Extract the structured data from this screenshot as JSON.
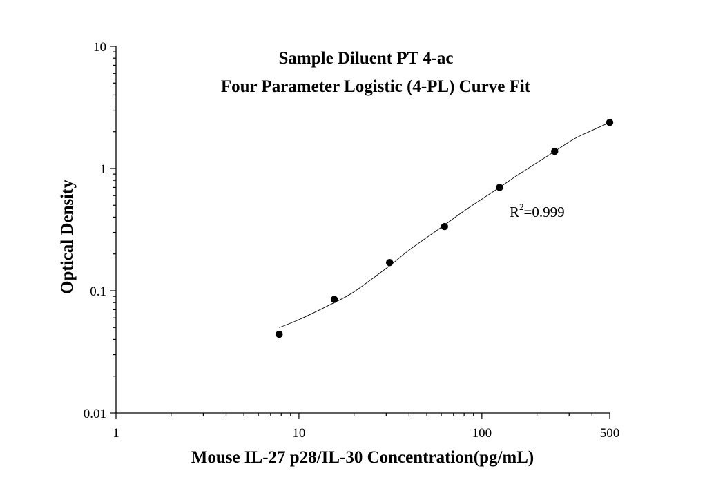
{
  "chart_data": {
    "type": "scatter",
    "title": "Sample Diluent PT 4-ac",
    "subtitle": "Four Parameter Logistic (4-PL) Curve Fit",
    "xlabel": "Mouse IL-27 p28/IL-30 Concentration(pg/mL)",
    "ylabel": "Optical Density",
    "x_scale": "log",
    "y_scale": "log",
    "xlim": [
      1,
      500
    ],
    "ylim": [
      0.01,
      10
    ],
    "x_ticks": [
      {
        "value": 1,
        "label": "1"
      },
      {
        "value": 10,
        "label": "10"
      },
      {
        "value": 100,
        "label": "100"
      },
      {
        "value": 500,
        "label": "500"
      }
    ],
    "y_ticks": [
      {
        "value": 0.01,
        "label": "0.01"
      },
      {
        "value": 0.1,
        "label": "0.1"
      },
      {
        "value": 1,
        "label": "1"
      },
      {
        "value": 10,
        "label": "10"
      }
    ],
    "series": [
      {
        "x": [
          7.8,
          15.6,
          31.3,
          62.5,
          125,
          250,
          500
        ],
        "y": [
          0.044,
          0.085,
          0.17,
          0.335,
          0.7,
          1.38,
          2.38
        ]
      }
    ],
    "fit_curve": {
      "x": [
        7.8,
        10,
        15.6,
        20,
        31.3,
        40,
        62.5,
        80,
        125,
        160,
        250,
        320,
        400,
        500
      ],
      "y": [
        0.05,
        0.058,
        0.08,
        0.098,
        0.16,
        0.215,
        0.345,
        0.45,
        0.7,
        0.9,
        1.38,
        1.75,
        2.05,
        2.38
      ]
    },
    "annotation": {
      "base": "R",
      "superscript": "2",
      "suffix": "=0.999"
    },
    "grid": false,
    "legend": "none"
  }
}
